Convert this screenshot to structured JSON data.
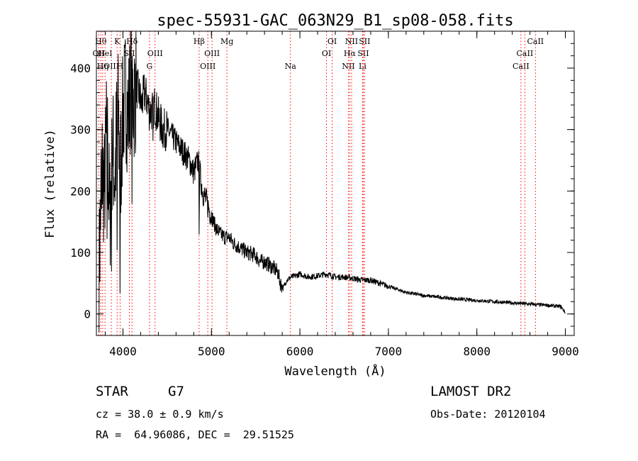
{
  "chart_data": {
    "type": "line",
    "title": "spec-55931-GAC_063N29_B1_sp08-058.fits",
    "xlabel": "Wavelength (Å)",
    "ylabel": "Flux (relative)",
    "xlim": [
      3700,
      9100
    ],
    "ylim": [
      -35,
      460
    ],
    "x_ticks": [
      4000,
      5000,
      6000,
      7000,
      8000,
      9000
    ],
    "y_ticks": [
      0,
      100,
      200,
      300,
      400
    ],
    "grid": false,
    "line_color": "#000000",
    "marker_color": "#ff0000",
    "series": [
      {
        "x": [
          3730,
          3760,
          3790,
          3820,
          3850,
          3880,
          3910,
          3940,
          3970,
          4000,
          4030,
          4060,
          4090,
          4120,
          4150,
          4180,
          4210,
          4240,
          4270,
          4300,
          4330,
          4360,
          4400,
          4450,
          4500,
          4550,
          4600,
          4650,
          4700,
          4750,
          4800,
          4850,
          4900,
          4950,
          5000,
          5050,
          5100,
          5150,
          5200,
          5250,
          5300,
          5350,
          5400,
          5450,
          5500,
          5550,
          5600,
          5650,
          5700,
          5750,
          5780,
          5810,
          5850,
          5900,
          5950,
          6000,
          6100,
          6200,
          6300,
          6400,
          6500,
          6600,
          6700,
          6800,
          6900,
          7000,
          7200,
          7400,
          7600,
          7800,
          8000,
          8200,
          8400,
          8600,
          8800,
          8950,
          9000
        ],
        "y": [
          60,
          250,
          200,
          310,
          150,
          280,
          220,
          350,
          230,
          330,
          360,
          320,
          380,
          350,
          370,
          360,
          340,
          360,
          350,
          330,
          330,
          340,
          320,
          300,
          300,
          290,
          280,
          270,
          260,
          250,
          230,
          250,
          200,
          180,
          160,
          140,
          130,
          125,
          125,
          115,
          110,
          105,
          100,
          98,
          95,
          85,
          85,
          80,
          75,
          68,
          50,
          42,
          55,
          60,
          62,
          65,
          60,
          62,
          65,
          60,
          60,
          58,
          55,
          55,
          50,
          45,
          35,
          30,
          27,
          24,
          22,
          20,
          18,
          16,
          14,
          12,
          2
        ]
      }
    ],
    "line_markers": [
      {
        "x": 3727,
        "label": "OII",
        "row": 2
      },
      {
        "x": 3750,
        "label": "Hθ",
        "row": 1
      },
      {
        "x": 3771,
        "label": "Hη",
        "row": 3
      },
      {
        "x": 3798,
        "label": "HeI",
        "row": 2
      },
      {
        "x": 3869,
        "label": "OIII",
        "row": 3
      },
      {
        "x": 3934,
        "label": "K",
        "row": 1
      },
      {
        "x": 3968,
        "label": "H",
        "row": 3
      },
      {
        "x": 4072,
        "label": "SII",
        "row": 2
      },
      {
        "x": 4102,
        "label": "Hδ",
        "row": 1
      },
      {
        "x": 4300,
        "label": "G",
        "row": 3
      },
      {
        "x": 4363,
        "label": "OIII",
        "row": 2
      },
      {
        "x": 4861,
        "label": "Hβ",
        "row": 1
      },
      {
        "x": 4959,
        "label": "OIII",
        "row": 3
      },
      {
        "x": 5007,
        "label": "OIII",
        "row": 2
      },
      {
        "x": 5175,
        "label": "Mg",
        "row": 1
      },
      {
        "x": 5893,
        "label": "Na",
        "row": 3
      },
      {
        "x": 6300,
        "label": "OI",
        "row": 2
      },
      {
        "x": 6364,
        "label": "OI",
        "row": 1
      },
      {
        "x": 6548,
        "label": "NII",
        "row": 3
      },
      {
        "x": 6563,
        "label": "Hα",
        "row": 2
      },
      {
        "x": 6584,
        "label": "NII",
        "row": 1
      },
      {
        "x": 6708,
        "label": "Li",
        "row": 3
      },
      {
        "x": 6716,
        "label": "SII",
        "row": 2
      },
      {
        "x": 6731,
        "label": "SII",
        "row": 1
      },
      {
        "x": 8498,
        "label": "CaII",
        "row": 3
      },
      {
        "x": 8542,
        "label": "CaII",
        "row": 2
      },
      {
        "x": 8662,
        "label": "CaII",
        "row": 1
      }
    ]
  },
  "info": {
    "class_label": "STAR",
    "subclass": "G7",
    "survey": "LAMOST DR2",
    "cz": "cz = 38.0 ± 0.9 km/s",
    "obs_date": "Obs-Date: 20120104",
    "coords": "RA =  64.96086, DEC =  29.51525"
  }
}
